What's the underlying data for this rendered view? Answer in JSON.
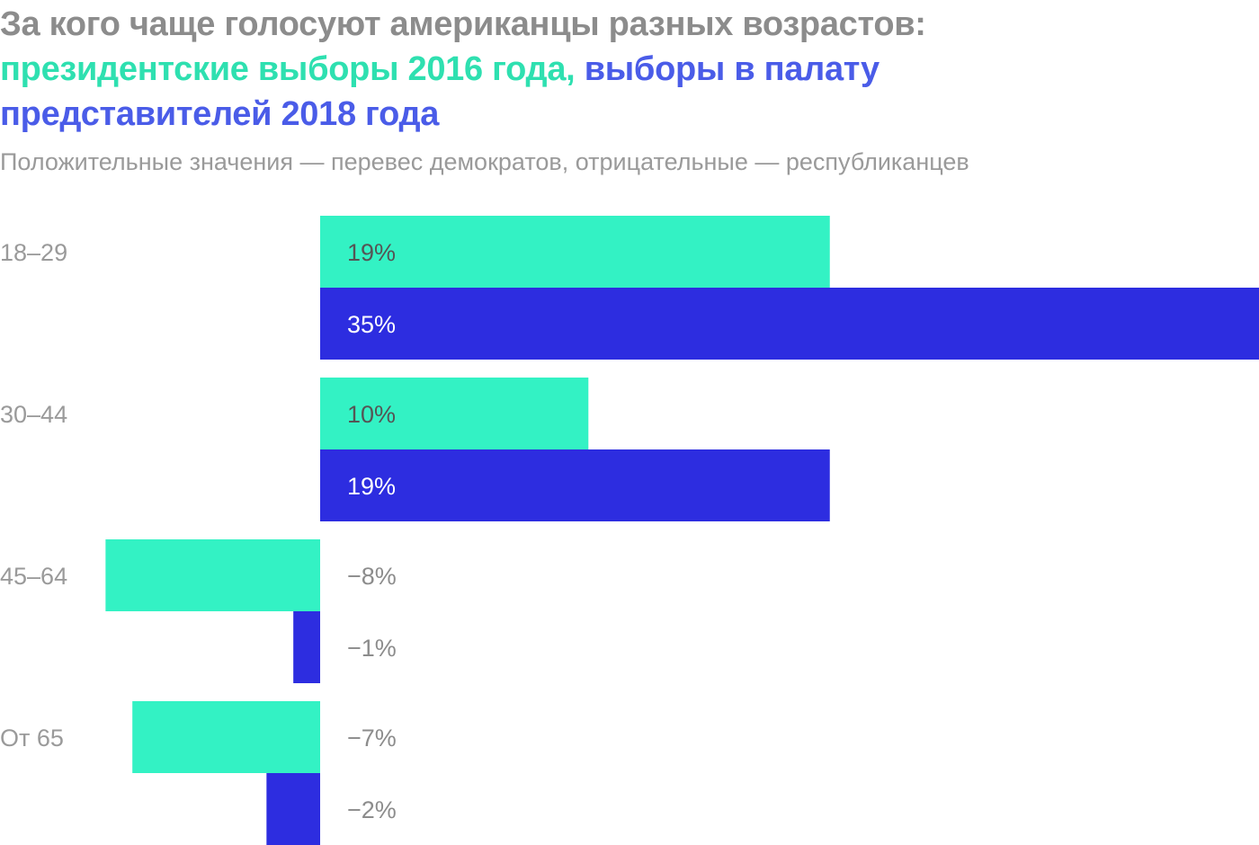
{
  "title": {
    "line1": "За кого чаще голосуют американцы разных возрастов:",
    "part_green": "президентские выборы 2016 года,",
    "part_blue_a": "выборы в палату",
    "part_blue_b": "представителей 2018 года"
  },
  "subtitle": "Положительные значения — перевес демократов, отрицательные — республиканцев",
  "colors": {
    "title_gray": "#8c8c8c",
    "series_2016": "#33f2c4",
    "series_2018": "#2d2de0",
    "label_gray": "#8c8c8c"
  },
  "chart_data": {
    "type": "bar",
    "orientation": "horizontal",
    "categories": [
      "18–29",
      "30–44",
      "45–64",
      "От 65"
    ],
    "series": [
      {
        "values": [
          19,
          10,
          -8,
          -7
        ],
        "labels": [
          "19%",
          "10%",
          "−8%",
          "−7%"
        ],
        "color": "#33f2c4"
      },
      {
        "values": [
          35,
          19,
          -1,
          -2
        ],
        "labels": [
          "35%",
          "19%",
          "−1%",
          "−2%"
        ],
        "color": "#2d2de0"
      }
    ],
    "xlim": [
      -8,
      35
    ],
    "grid": false,
    "legend": "none"
  }
}
